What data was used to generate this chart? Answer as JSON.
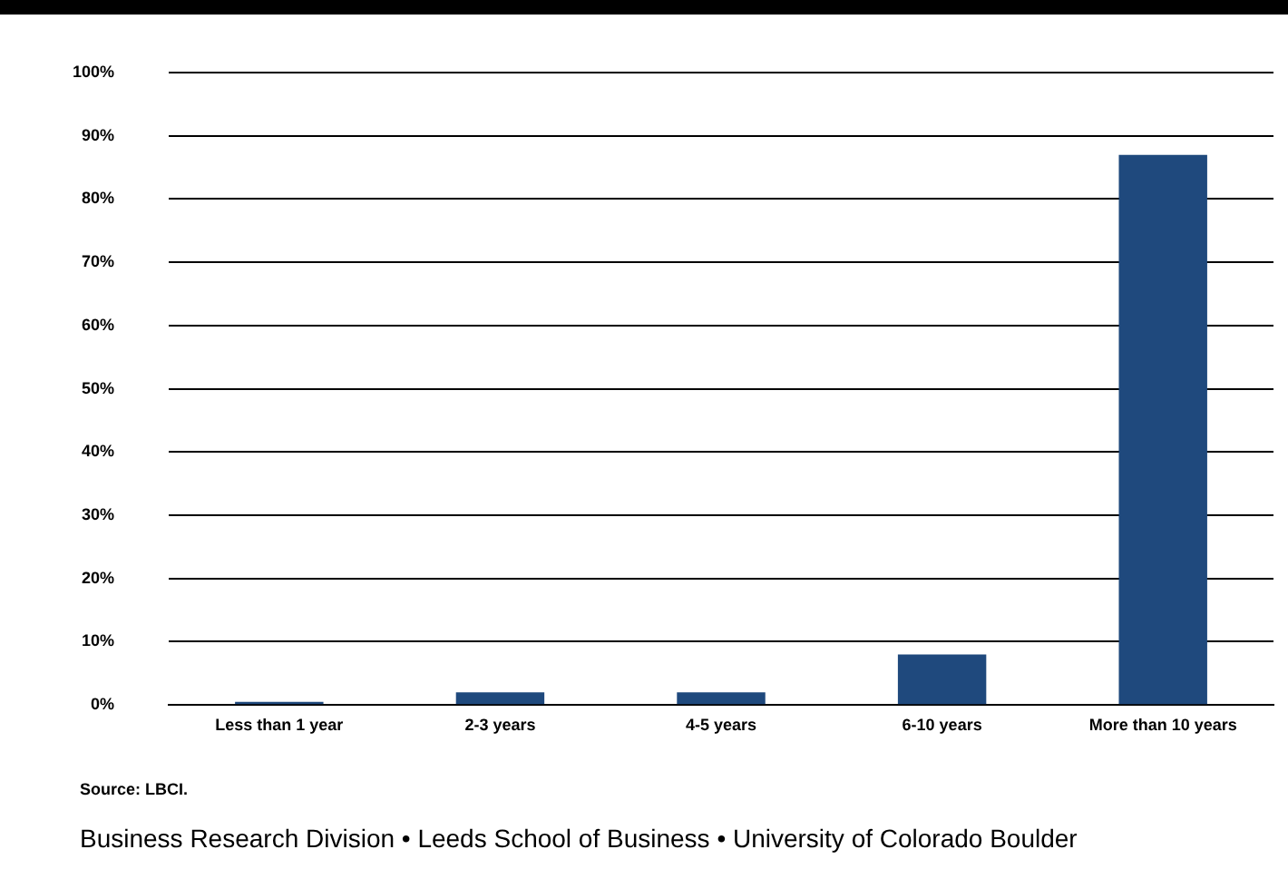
{
  "chart_data": {
    "type": "bar",
    "categories": [
      "Less than 1 year",
      "2-3 years",
      "4-5 years",
      "6-10 years",
      "More than 10 years"
    ],
    "values": [
      0.5,
      2,
      2,
      8,
      87
    ],
    "color": "#1f497d",
    "ylim": [
      0,
      100
    ],
    "yticks": [
      {
        "value": 0,
        "label": "0%"
      },
      {
        "value": 10,
        "label": "10%"
      },
      {
        "value": 20,
        "label": "20%"
      },
      {
        "value": 30,
        "label": "30%"
      },
      {
        "value": 40,
        "label": "40%"
      },
      {
        "value": 50,
        "label": "50%"
      },
      {
        "value": 60,
        "label": "60%"
      },
      {
        "value": 70,
        "label": "70%"
      },
      {
        "value": 80,
        "label": "80%"
      },
      {
        "value": 90,
        "label": "90%"
      },
      {
        "value": 100,
        "label": "100%"
      }
    ],
    "grid": "y",
    "legend": false,
    "annotations": [
      "Source: LBCI.",
      "Business Research Division • Leeds School of Business • University of Colorado Boulder"
    ]
  }
}
